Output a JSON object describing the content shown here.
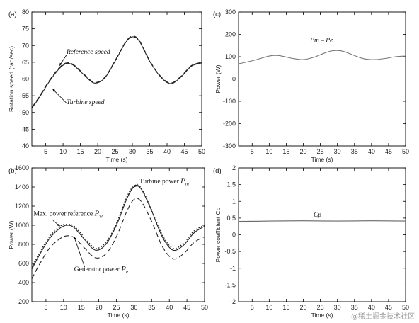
{
  "watermark": "@稀土掘金技术社区",
  "chart_data": [
    {
      "id": "a",
      "panel_label": "(a)",
      "type": "line",
      "xlabel": "Time (s)",
      "ylabel": "Rotation speed (rad/sec)",
      "xlim": [
        1,
        50
      ],
      "ylim": [
        40,
        80
      ],
      "xticks": [
        5,
        10,
        15,
        20,
        25,
        30,
        35,
        40,
        45,
        50
      ],
      "yticks": [
        40,
        45,
        50,
        55,
        60,
        65,
        70,
        75,
        80
      ],
      "x": [
        1,
        3,
        6,
        9,
        11,
        13,
        16,
        19,
        22,
        25,
        28,
        30,
        32,
        35,
        38,
        41,
        44,
        47,
        50
      ],
      "series": [
        {
          "name": "Reference speed",
          "values": [
            51.5,
            54.5,
            59.5,
            63.5,
            64.8,
            64.3,
            61.5,
            59.0,
            60.5,
            65.5,
            71.0,
            72.8,
            71.5,
            65.5,
            61.0,
            58.8,
            60.8,
            64.0,
            65.0
          ],
          "style": "dashed"
        },
        {
          "name": "Turbine speed",
          "values": [
            51.3,
            54.2,
            59.2,
            63.2,
            64.6,
            64.1,
            61.3,
            58.8,
            60.3,
            65.3,
            70.8,
            72.6,
            71.3,
            65.3,
            60.8,
            58.6,
            60.6,
            63.8,
            64.8
          ],
          "style": "solid"
        }
      ],
      "annotations": [
        {
          "text": "Reference speed",
          "x": 11,
          "y": 67.5
        },
        {
          "text": "Turbine speed",
          "x": 11,
          "y": 52.5
        }
      ]
    },
    {
      "id": "b",
      "panel_label": "(b)",
      "type": "line",
      "xlabel": "Time (s)",
      "ylabel": "Power (W)",
      "xlim": [
        1,
        50
      ],
      "ylim": [
        200,
        1600
      ],
      "xticks": [
        5,
        10,
        15,
        20,
        25,
        30,
        35,
        40,
        45,
        50
      ],
      "xtick_labels": [
        "5",
        "10",
        "15",
        "20",
        "25",
        "30",
        "35",
        "40",
        "45",
        "50"
      ],
      "yticks": [
        200,
        400,
        600,
        800,
        1000,
        1200,
        1400,
        1600
      ],
      "x": [
        1,
        3,
        6,
        9,
        11,
        13,
        16,
        19,
        22,
        25,
        28,
        30,
        32,
        35,
        38,
        41,
        44,
        47,
        50
      ],
      "series": [
        {
          "name": "Turbine power",
          "values": [
            540,
            680,
            860,
            970,
            1000,
            975,
            850,
            740,
            800,
            1000,
            1280,
            1400,
            1380,
            1150,
            880,
            740,
            790,
            920,
            990
          ],
          "style": "solid"
        },
        {
          "name": "Max. power reference",
          "values": [
            560,
            700,
            880,
            990,
            1010,
            990,
            870,
            760,
            820,
            1020,
            1300,
            1410,
            1390,
            1160,
            900,
            760,
            810,
            940,
            1000
          ],
          "style": "dotted"
        },
        {
          "name": "Generator power",
          "values": [
            440,
            580,
            760,
            860,
            890,
            870,
            760,
            660,
            700,
            880,
            1150,
            1270,
            1250,
            1040,
            780,
            650,
            700,
            820,
            880
          ],
          "style": "dashed"
        }
      ],
      "annotations": [
        {
          "text": "Turbine power",
          "sym": "P",
          "sub": "m",
          "x": 31.5,
          "y": 1440
        },
        {
          "text": "Max. power reference",
          "sym": "P",
          "sub": "w",
          "x": 1.5,
          "y": 1100
        },
        {
          "text": "Generator power",
          "sym": "P",
          "sub": "e",
          "x": 13,
          "y": 520
        }
      ]
    },
    {
      "id": "c",
      "panel_label": "(c)",
      "type": "line",
      "xlabel": "Time (s)",
      "ylabel": "Power (W)",
      "xlim": [
        1,
        50
      ],
      "ylim": [
        -300,
        300
      ],
      "xticks": [
        5,
        10,
        15,
        20,
        25,
        30,
        35,
        40,
        45,
        50
      ],
      "yticks": [
        -300,
        -200,
        -100,
        0,
        100,
        200,
        300
      ],
      "x": [
        1,
        4,
        7,
        10,
        12,
        14,
        17,
        20,
        23,
        26,
        28,
        30,
        32,
        35,
        38,
        41,
        44,
        47,
        50
      ],
      "series": [
        {
          "name": "Pm - Pe",
          "values": [
            68,
            78,
            90,
            103,
            106,
            102,
            92,
            87,
            97,
            115,
            125,
            128,
            123,
            105,
            90,
            87,
            92,
            100,
            103
          ],
          "style": "solid"
        }
      ],
      "annotations": [
        {
          "text": "Pm – Pe",
          "x": 22,
          "y": 165
        }
      ]
    },
    {
      "id": "d",
      "panel_label": "(d)",
      "type": "line",
      "xlabel": "Time (s)",
      "ylabel": "Power coefficient Cp",
      "xlim": [
        1,
        50
      ],
      "ylim": [
        -2,
        2
      ],
      "xticks": [
        5,
        10,
        15,
        20,
        25,
        30,
        35,
        40,
        45,
        50
      ],
      "yticks": [
        -2,
        -1.5,
        -1,
        -0.5,
        0,
        0.5,
        1,
        1.5,
        2
      ],
      "ytick_labels": [
        "-2",
        "-1.5",
        "-1",
        "-0.5",
        "0",
        "0.5",
        "1",
        "1.5",
        "2"
      ],
      "x": [
        1,
        10,
        20,
        30,
        40,
        50
      ],
      "series": [
        {
          "name": "Cp",
          "values": [
            0.4,
            0.41,
            0.42,
            0.41,
            0.42,
            0.41
          ],
          "style": "solid"
        }
      ],
      "annotations": [
        {
          "text": "Cp",
          "x": 23,
          "y": 0.54
        }
      ]
    }
  ]
}
